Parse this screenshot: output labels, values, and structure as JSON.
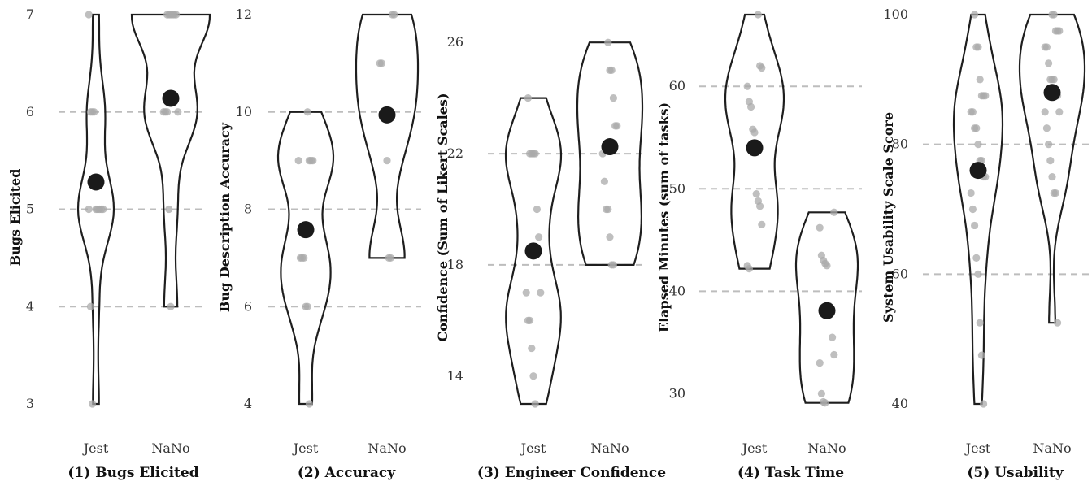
{
  "chart_data": [
    {
      "type": "violin",
      "title": "(1) Bugs Elicited",
      "ylabel": "Bugs Elicited",
      "categories": [
        "Jest",
        "NaNo"
      ],
      "ylim": [
        3,
        7
      ],
      "yticks": [
        3,
        4,
        5,
        6,
        7
      ],
      "grid": [
        4,
        5,
        6
      ],
      "series": [
        {
          "values": [
            7,
            6,
            6,
            6,
            5,
            5,
            5,
            5,
            5,
            5,
            4,
            3
          ],
          "mean": 5.28
        },
        {
          "values": [
            7,
            7,
            7,
            7,
            7,
            7,
            6,
            6,
            6,
            6,
            5,
            4
          ],
          "mean": 6.14
        }
      ]
    },
    {
      "type": "violin",
      "title": "(2) Accuracy",
      "ylabel": "Bug Description Accuracy",
      "categories": [
        "Jest",
        "NaNo"
      ],
      "ylim": [
        4,
        12
      ],
      "yticks": [
        4,
        6,
        8,
        10,
        12
      ],
      "grid": [
        6,
        8,
        10
      ],
      "series": [
        {
          "values": [
            10,
            9,
            9,
            9,
            9,
            7,
            7,
            7,
            6,
            6,
            4
          ],
          "mean": 7.58
        },
        {
          "values": [
            12,
            12,
            11,
            11,
            10,
            10,
            9,
            7,
            7
          ],
          "mean": 9.94
        }
      ]
    },
    {
      "type": "violin",
      "title": "(3) Engineer Confidence",
      "ylabel": "Confidence (Sum of Likert Scales)",
      "categories": [
        "Jest",
        "NaNo"
      ],
      "ylim": [
        13,
        27
      ],
      "yticks": [
        14,
        18,
        22,
        26
      ],
      "grid": [
        18,
        22
      ],
      "series": [
        {
          "values": [
            24,
            22,
            22,
            22,
            22,
            20,
            19,
            17,
            17,
            16,
            16,
            15,
            14,
            13
          ],
          "mean": 18.5
        },
        {
          "values": [
            26,
            25,
            25,
            24,
            23,
            23,
            22,
            21,
            20,
            20,
            19,
            18,
            18
          ],
          "mean": 22.25
        }
      ]
    },
    {
      "type": "violin",
      "title": "(4) Task Time",
      "ylabel": "Elapsed Minutes (sum of tasks)",
      "categories": [
        "Jest",
        "NaNo"
      ],
      "ylim": [
        29,
        67
      ],
      "yticks": [
        30,
        40,
        50,
        60
      ],
      "grid": [
        40,
        50,
        60
      ],
      "series": [
        {
          "values": [
            67,
            62,
            61.8,
            60,
            58.5,
            58,
            55.8,
            55.5,
            49.5,
            48.8,
            48.3,
            46.5,
            42.5,
            42.2
          ],
          "mean": 54
        },
        {
          "values": [
            47.7,
            46.2,
            43.5,
            43,
            42.7,
            42.5,
            38.6,
            37.8,
            35.5,
            33.8,
            33,
            30,
            29.2,
            29.1
          ],
          "mean": 38.1
        }
      ]
    },
    {
      "type": "violin",
      "title": "(5) Usability",
      "ylabel": "System Usability Scale Score",
      "categories": [
        "Jest",
        "NaNo"
      ],
      "ylim": [
        40,
        100
      ],
      "yticks": [
        40,
        60,
        80,
        100
      ],
      "grid": [
        60,
        80
      ],
      "series": [
        {
          "values": [
            100,
            95,
            95,
            90,
            87.5,
            87.5,
            87.5,
            85,
            85,
            82.5,
            82.5,
            80,
            77.5,
            77.5,
            75,
            75,
            72.5,
            70,
            67.5,
            62.5,
            60,
            52.5,
            47.5,
            40
          ],
          "mean": 76
        },
        {
          "values": [
            100,
            100,
            97.5,
            97.5,
            97.5,
            95,
            95,
            92.5,
            90,
            90,
            90,
            87.5,
            87.5,
            85,
            85,
            82.5,
            80,
            77.5,
            75,
            72.5,
            72.5,
            52.5
          ],
          "mean": 88
        }
      ]
    }
  ]
}
